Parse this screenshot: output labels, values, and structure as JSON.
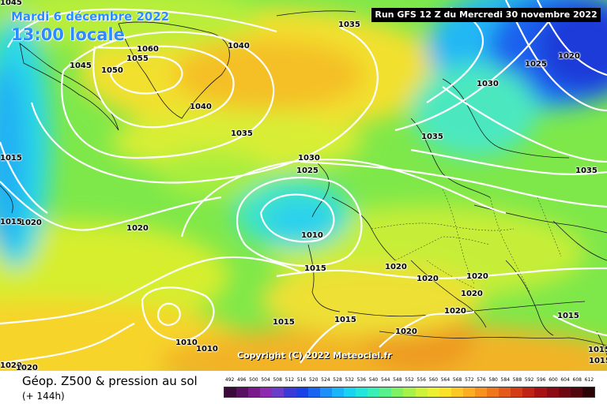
{
  "header": {
    "date_line": "Mardi 6 décembre 2022",
    "time_line": "13:00 locale",
    "run_info": "Run GFS 12 Z du Mercredi 30 novembre 2022"
  },
  "copyright": "Copyright (C) 2022 Meteociel.fr",
  "legend": {
    "title": "Géop. Z500 & pression au sol",
    "subtitle": "(+ 144h)",
    "scale_values": [
      "492",
      "496",
      "500",
      "504",
      "508",
      "512",
      "516",
      "520",
      "524",
      "528",
      "532",
      "536",
      "540",
      "544",
      "548",
      "552",
      "556",
      "560",
      "564",
      "568",
      "572",
      "576",
      "580",
      "584",
      "588",
      "592",
      "596",
      "600",
      "604",
      "608",
      "612"
    ],
    "scale_colors": [
      "#3a0a3a",
      "#5a1060",
      "#7a1a8a",
      "#8e2ab0",
      "#6a3cc8",
      "#3a3ad8",
      "#1a40e8",
      "#1a64f2",
      "#1a90f8",
      "#1ab4fa",
      "#1ad2f2",
      "#22e6dc",
      "#36f0b8",
      "#56f08c",
      "#7ef264",
      "#a6f24a",
      "#cef23a",
      "#ecf032",
      "#fae22a",
      "#fcc826",
      "#fcae22",
      "#f8921e",
      "#f0761c",
      "#e45a1a",
      "#d43c18",
      "#c02216",
      "#a81214",
      "#8c0a12",
      "#6e0810",
      "#50060c",
      "#2a0406"
    ]
  },
  "isobar_labels": [
    "1045",
    "1035",
    "1060",
    "1055",
    "1040",
    "1045",
    "1050",
    "1040",
    "1035",
    "1025",
    "1020",
    "1030",
    "1035",
    "1015",
    "1030",
    "1025",
    "1035",
    "1020",
    "1015",
    "1010",
    "1020",
    "1015",
    "1020",
    "1015",
    "1020",
    "1020",
    "1015",
    "1010",
    "1010",
    "1015",
    "1020",
    "1020",
    "1015",
    "1020",
    "1020",
    "1015",
    "1020"
  ]
}
